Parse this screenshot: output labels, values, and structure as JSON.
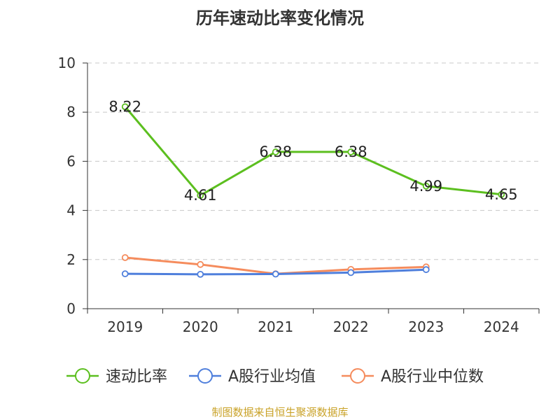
{
  "title": "历年速动比率变化情况",
  "credit": "制图数据来自恒生聚源数据库",
  "chart_data": {
    "type": "line",
    "title": "历年速动比率变化情况",
    "categories": [
      "2019",
      "2020",
      "2021",
      "2022",
      "2023",
      "2024"
    ],
    "ylim": [
      0,
      10
    ],
    "yticks": [
      0,
      2,
      4,
      6,
      8,
      10
    ],
    "grid": true,
    "legend_position": "bottom",
    "series": [
      {
        "name": "速动比率",
        "color": "#5cbf1f",
        "values": [
          8.22,
          4.61,
          6.38,
          6.38,
          4.99,
          4.65
        ],
        "labels": [
          "8.22",
          "4.61",
          "6.38",
          "6.38",
          "4.99",
          "4.65"
        ]
      },
      {
        "name": "A股行业均值",
        "color": "#4f7fdc",
        "values": [
          1.42,
          1.4,
          1.41,
          1.47,
          1.59,
          null
        ]
      },
      {
        "name": "A股行业中位数",
        "color": "#f58c5d",
        "values": [
          2.08,
          1.8,
          1.42,
          1.6,
          1.7,
          null
        ]
      }
    ]
  }
}
